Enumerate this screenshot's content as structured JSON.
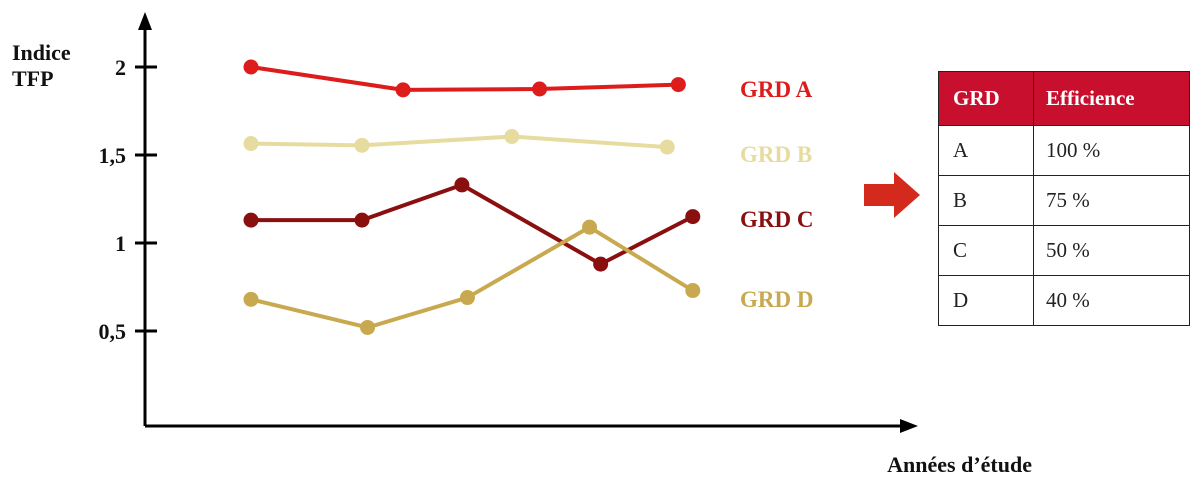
{
  "chart_data": {
    "type": "line",
    "title": "",
    "ylabel": "Indice TFP",
    "xlabel": "Années d’étude",
    "ylim": [
      0,
      2.3
    ],
    "yticks": [
      {
        "value": 2,
        "label": "2"
      },
      {
        "value": 1.5,
        "label": "1,5"
      },
      {
        "value": 1,
        "label": "1"
      },
      {
        "value": 0.5,
        "label": "0,5"
      }
    ],
    "grid": false,
    "legend_placement": "right of each series",
    "series": [
      {
        "name": "GRD A",
        "color": "#dd1c1c",
        "points": [
          [
            1,
            2.0
          ],
          [
            2.37,
            1.87
          ],
          [
            3.6,
            1.875
          ],
          [
            4.85,
            1.9
          ]
        ]
      },
      {
        "name": "GRD B",
        "color": "#e7dca0",
        "points": [
          [
            1,
            1.565
          ],
          [
            2.0,
            1.555
          ],
          [
            3.35,
            1.605
          ],
          [
            4.75,
            1.545
          ]
        ]
      },
      {
        "name": "GRD C",
        "color": "#8a1010",
        "points": [
          [
            1,
            1.13
          ],
          [
            2.0,
            1.13
          ],
          [
            2.9,
            1.33
          ],
          [
            4.15,
            0.88
          ],
          [
            4.98,
            1.15
          ]
        ]
      },
      {
        "name": "GRD D",
        "color": "#c9a94f",
        "points": [
          [
            1,
            0.68
          ],
          [
            2.05,
            0.52
          ],
          [
            2.95,
            0.69
          ],
          [
            4.05,
            1.09
          ],
          [
            4.98,
            0.73
          ]
        ]
      }
    ]
  },
  "arrow": {
    "icon": "right-arrow-icon",
    "color": "#d42a1e"
  },
  "table": {
    "headers": [
      "GRD",
      "Efficience"
    ],
    "header_color": "#c8102e",
    "rows": [
      [
        "A",
        "100 %"
      ],
      [
        "B",
        "75 %"
      ],
      [
        "C",
        "50 %"
      ],
      [
        "D",
        "40 %"
      ]
    ]
  }
}
